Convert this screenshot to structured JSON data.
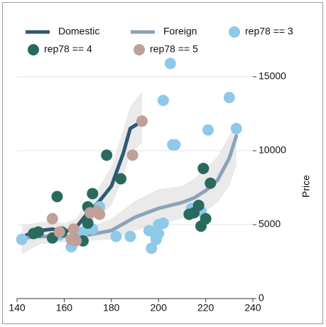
{
  "chart_data": {
    "type": "scatter",
    "xlim": [
      140,
      240
    ],
    "xticks": [
      140,
      160,
      180,
      200,
      220,
      240
    ],
    "ylim": [
      0,
      20000
    ],
    "yticks": [
      0,
      5000,
      10000,
      15000
    ],
    "y_label": "Price",
    "y_axis_side": "right",
    "grid": true,
    "lines": [
      {
        "name": "Domestic",
        "color": "#2f5a72",
        "x": [
          144,
          150,
          155,
          160,
          165,
          170,
          175,
          180,
          185,
          188,
          193
        ],
        "values": [
          4300,
          4600,
          4700,
          4500,
          4800,
          5800,
          6600,
          7600,
          9800,
          11500,
          12000
        ],
        "lower": [
          3600,
          4000,
          4200,
          3900,
          4200,
          5000,
          5600,
          6300,
          8200,
          9800,
          10500
        ],
        "upper": [
          5000,
          5200,
          5200,
          5100,
          5400,
          6600,
          7600,
          8900,
          11400,
          13000,
          14000
        ]
      },
      {
        "name": "Foreign",
        "color": "#8da3b6",
        "x": [
          142,
          150,
          160,
          170,
          180,
          190,
          200,
          210,
          215,
          220,
          225,
          230,
          233
        ],
        "values": [
          4100,
          4200,
          4200,
          4300,
          4600,
          5500,
          6100,
          6500,
          6800,
          7300,
          8000,
          9500,
          11000
        ],
        "lower": [
          3000,
          3700,
          3800,
          3900,
          4000,
          4600,
          5000,
          5400,
          5500,
          5900,
          6500,
          7600,
          9000
        ],
        "upper": [
          5000,
          4900,
          4800,
          4800,
          5400,
          6600,
          7400,
          7600,
          8100,
          8800,
          9600,
          11000,
          12000
        ]
      }
    ],
    "series": [
      {
        "name": "rep78 == 3",
        "color": "#8ec9ea",
        "x": [
          142,
          158,
          163,
          168,
          172,
          175,
          182,
          188,
          196,
          197,
          199,
          200,
          200,
          202,
          199,
          202,
          205,
          206,
          207,
          214,
          218,
          221,
          230,
          233
        ],
        "values": [
          4000,
          4300,
          3500,
          4500,
          4700,
          6200,
          4200,
          4200,
          4600,
          3400,
          4000,
          4400,
          5000,
          5100,
          4200,
          13400,
          15900,
          10400,
          10400,
          6100,
          5900,
          11400,
          13600,
          11500
        ]
      },
      {
        "name": "rep78 == 4",
        "color": "#2a6a5e",
        "x": [
          147,
          149,
          155,
          157,
          159,
          168,
          170,
          170,
          172,
          178,
          184,
          213,
          215,
          217,
          218,
          219,
          220,
          222
        ],
        "values": [
          4400,
          4500,
          4100,
          6900,
          4500,
          3900,
          5100,
          6200,
          7100,
          9700,
          8100,
          5700,
          5800,
          6300,
          4900,
          8800,
          5400,
          7800
        ]
      },
      {
        "name": "rep78 == 5",
        "color": "#c0a098",
        "x": [
          155,
          158,
          163,
          164,
          165,
          171,
          174,
          175,
          189,
          193
        ],
        "values": [
          5400,
          4500,
          4000,
          4700,
          3900,
          5800,
          5900,
          5700,
          9700,
          12000
        ]
      }
    ]
  }
}
